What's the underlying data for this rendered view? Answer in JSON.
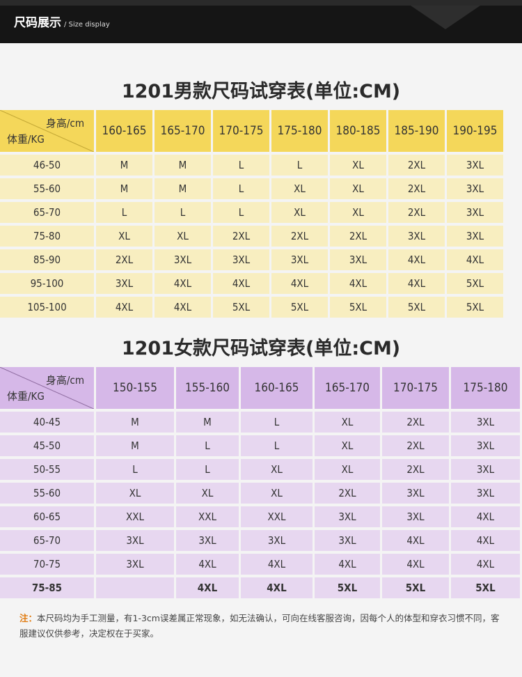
{
  "header": {
    "title": "尺码展示",
    "subtitle": "/ Size display"
  },
  "men": {
    "title": "1201男款尺码试穿表(单位:CM)",
    "height_label": "身高/cm",
    "weight_label": "体重/KG",
    "columns": [
      "160-165",
      "165-170",
      "170-175",
      "175-180",
      "180-185",
      "185-190",
      "190-195"
    ],
    "rows": [
      {
        "weight": "46-50",
        "sizes": [
          "M",
          "M",
          "L",
          "L",
          "XL",
          "2XL",
          "3XL"
        ]
      },
      {
        "weight": "55-60",
        "sizes": [
          "M",
          "M",
          "L",
          "XL",
          "XL",
          "2XL",
          "3XL"
        ]
      },
      {
        "weight": "65-70",
        "sizes": [
          "L",
          "L",
          "L",
          "XL",
          "XL",
          "2XL",
          "3XL"
        ]
      },
      {
        "weight": "75-80",
        "sizes": [
          "XL",
          "XL",
          "2XL",
          "2XL",
          "2XL",
          "3XL",
          "3XL"
        ]
      },
      {
        "weight": "85-90",
        "sizes": [
          "2XL",
          "3XL",
          "3XL",
          "3XL",
          "3XL",
          "4XL",
          "4XL"
        ]
      },
      {
        "weight": "95-100",
        "sizes": [
          "3XL",
          "4XL",
          "4XL",
          "4XL",
          "4XL",
          "4XL",
          "5XL"
        ]
      },
      {
        "weight": "105-100",
        "sizes": [
          "4XL",
          "4XL",
          "5XL",
          "5XL",
          "5XL",
          "5XL",
          "5XL"
        ]
      }
    ]
  },
  "women": {
    "title": "1201女款尺码试穿表(单位:CM)",
    "height_label": "身高/cm",
    "weight_label": "体重/KG",
    "columns": [
      "150-155",
      "155-160",
      "160-165",
      "165-170",
      "170-175",
      "175-180"
    ],
    "rows": [
      {
        "weight": "40-45",
        "sizes": [
          "M",
          "M",
          "L",
          "XL",
          "2XL",
          "3XL"
        ]
      },
      {
        "weight": "45-50",
        "sizes": [
          "M",
          "L",
          "L",
          "XL",
          "2XL",
          "3XL"
        ]
      },
      {
        "weight": "50-55",
        "sizes": [
          "L",
          "L",
          "XL",
          "XL",
          "2XL",
          "3XL"
        ]
      },
      {
        "weight": "55-60",
        "sizes": [
          "XL",
          "XL",
          "XL",
          "2XL",
          "3XL",
          "3XL"
        ]
      },
      {
        "weight": "60-65",
        "sizes": [
          "XXL",
          "XXL",
          "XXL",
          "3XL",
          "3XL",
          "4XL"
        ]
      },
      {
        "weight": "65-70",
        "sizes": [
          "3XL",
          "3XL",
          "3XL",
          "3XL",
          "4XL",
          "4XL"
        ]
      },
      {
        "weight": "70-75",
        "sizes": [
          "3XL",
          "4XL",
          "4XL",
          "4XL",
          "4XL",
          "4XL"
        ]
      },
      {
        "weight": "75-85",
        "sizes": [
          "",
          "4XL",
          "4XL",
          "5XL",
          "5XL",
          "5XL"
        ]
      }
    ]
  },
  "note": {
    "label": "注：",
    "text": "本尺码均为手工测量，有1-3cm误差属正常现象，如无法确认，可向在线客服咨询，因每个人的体型和穿衣习惯不同，客服建议仅供参考，决定权在于买家。"
  },
  "colors": {
    "men_header": "#f4d75a",
    "men_cell": "#f8eec0",
    "women_header": "#d6b8e8",
    "women_cell": "#e7d7f0",
    "note_label": "#e07b10"
  }
}
